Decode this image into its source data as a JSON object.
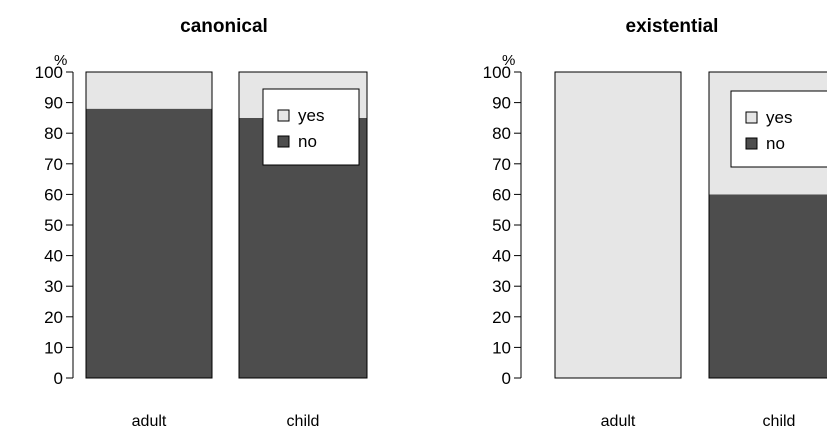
{
  "chart_data": [
    {
      "type": "bar",
      "stacked": true,
      "percent": true,
      "title": "canonical",
      "y_unit_label": "%",
      "categories": [
        "adult",
        "child"
      ],
      "series": [
        {
          "name": "no",
          "values": [
            88,
            85
          ],
          "color": "#4d4d4d"
        },
        {
          "name": "yes",
          "values": [
            12,
            15
          ],
          "color": "#e6e6e6"
        }
      ],
      "ylim": [
        0,
        100
      ],
      "yticks": [
        0,
        10,
        20,
        30,
        40,
        50,
        60,
        70,
        80,
        90,
        100
      ],
      "grid": false,
      "legend": {
        "position": "top-right",
        "entries": [
          "yes",
          "no"
        ]
      }
    },
    {
      "type": "bar",
      "stacked": true,
      "percent": true,
      "title": "existential",
      "y_unit_label": "%",
      "categories": [
        "adult",
        "child"
      ],
      "series": [
        {
          "name": "no",
          "values": [
            0,
            60
          ],
          "color": "#4d4d4d"
        },
        {
          "name": "yes",
          "values": [
            100,
            40
          ],
          "color": "#e6e6e6"
        }
      ],
      "ylim": [
        0,
        100
      ],
      "yticks": [
        0,
        10,
        20,
        30,
        40,
        50,
        60,
        70,
        80,
        90,
        100
      ],
      "grid": false,
      "legend": {
        "position": "top-right",
        "entries": [
          "yes",
          "no"
        ]
      }
    }
  ]
}
